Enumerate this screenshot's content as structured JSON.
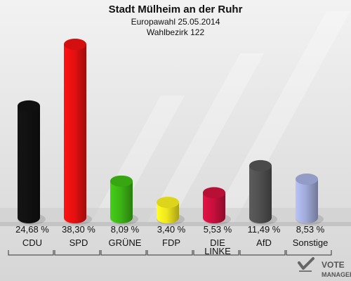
{
  "chart_data": {
    "type": "bar",
    "title": "Stadt Mülheim an der Ruhr",
    "subtitle_1": "Europawahl 25.05.2014",
    "subtitle_2": "Wahlbezirk 122",
    "categories": [
      "CDU",
      "SPD",
      "GRÜNE",
      "FDP",
      "DIE LINKE",
      "AfD",
      "Sonstige"
    ],
    "values": [
      24.68,
      38.3,
      8.09,
      3.4,
      5.53,
      11.49,
      8.53
    ],
    "value_labels": [
      "24,68 %",
      "38,30 %",
      "8,09 %",
      "3,40 %",
      "5,53 %",
      "11,49 %",
      "8,53 %"
    ],
    "colors": [
      "#111111",
      "#e61010",
      "#3cb414",
      "#f0e61e",
      "#c8103c",
      "#505050",
      "#a0aad8"
    ],
    "ylim": [
      0,
      40
    ],
    "grid": false,
    "legend": "none"
  },
  "logo": {
    "line1": "VOTE",
    "line2": "MANAGER"
  }
}
